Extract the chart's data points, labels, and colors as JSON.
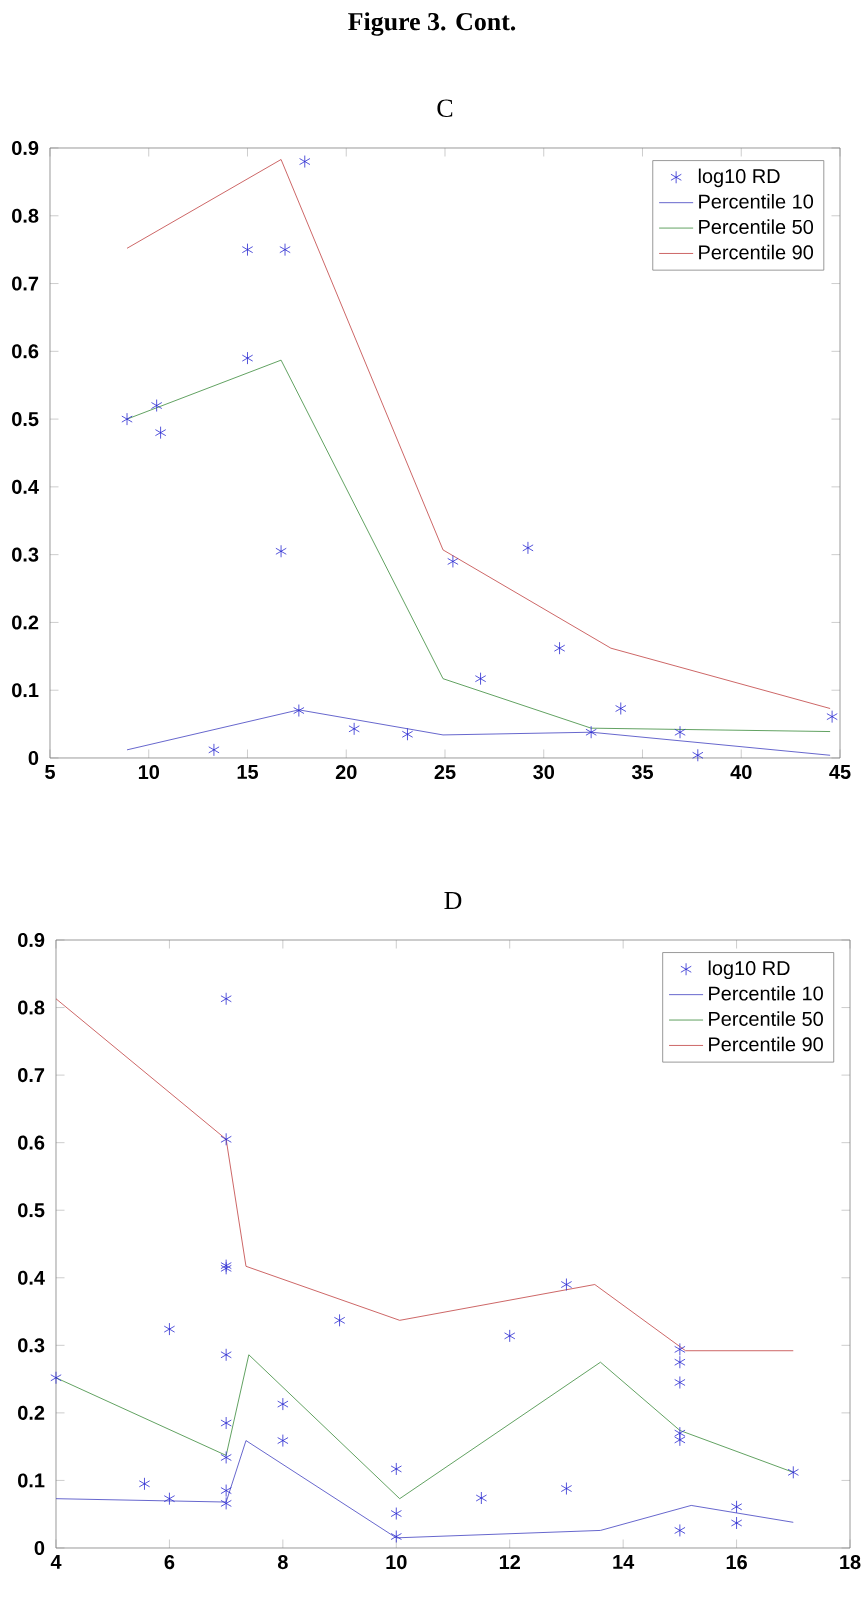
{
  "chart_data": [
    {
      "type": "line",
      "title": "C",
      "annotations": [
        "Figure 3. Cont."
      ],
      "xlim": [
        5,
        45
      ],
      "ylim": [
        0,
        0.9
      ],
      "xticks": [
        5,
        10,
        15,
        20,
        25,
        30,
        35,
        40,
        45
      ],
      "yticks": [
        0,
        0.1,
        0.2,
        0.3,
        0.4,
        0.5,
        0.6,
        0.7,
        0.8,
        0.9
      ],
      "legend": "top right",
      "grid": false,
      "series": [
        {
          "name": "log10 RD",
          "type": "scatter",
          "marker": "cross",
          "color": "#2a2ad0",
          "x": [
            8.9,
            10.4,
            10.6,
            15.0,
            15.0,
            16.9,
            17.9,
            16.7,
            13.3,
            17.6,
            20.4,
            23.1,
            25.4,
            26.8,
            29.2,
            30.8,
            32.4,
            33.9,
            36.9,
            37.8,
            44.6
          ],
          "values": [
            0.5,
            0.52,
            0.48,
            0.59,
            0.75,
            0.75,
            0.88,
            0.305,
            0.012,
            0.07,
            0.043,
            0.035,
            0.29,
            0.117,
            0.31,
            0.162,
            0.038,
            0.073,
            0.038,
            0.004,
            0.061
          ]
        },
        {
          "name": "Percentile 10",
          "type": "line",
          "color": "#4040c0",
          "x": [
            8.9,
            17.6,
            24.9,
            32.4,
            44.5
          ],
          "values": [
            0.012,
            0.071,
            0.034,
            0.038,
            0.004
          ]
        },
        {
          "name": "Percentile 50",
          "type": "line",
          "color": "#3a8a3a",
          "x": [
            8.9,
            16.7,
            24.9,
            32.4,
            44.5
          ],
          "values": [
            0.5,
            0.587,
            0.117,
            0.044,
            0.039
          ]
        },
        {
          "name": "Percentile 90",
          "type": "line",
          "color": "#c04040",
          "x": [
            8.9,
            16.7,
            24.9,
            33.4,
            44.5
          ],
          "values": [
            0.752,
            0.883,
            0.307,
            0.162,
            0.073
          ]
        }
      ]
    },
    {
      "type": "line",
      "title": "D",
      "xlim": [
        4,
        18
      ],
      "ylim": [
        0,
        0.9
      ],
      "xticks": [
        4,
        6,
        8,
        10,
        12,
        14,
        16,
        18
      ],
      "yticks": [
        0,
        0.1,
        0.2,
        0.3,
        0.4,
        0.5,
        0.6,
        0.7,
        0.8,
        0.9
      ],
      "legend": "top right",
      "grid": false,
      "series": [
        {
          "name": "log10 RD",
          "type": "scatter",
          "marker": "cross",
          "color": "#2a2ad0",
          "x": [
            4.0,
            5.56,
            6.0,
            6.0,
            7,
            7,
            7,
            7,
            7,
            7,
            7,
            7,
            7,
            8,
            8,
            9,
            10,
            10,
            10,
            11.5,
            12,
            13,
            13,
            15,
            15,
            15,
            15,
            15,
            15,
            16,
            16,
            17
          ],
          "values": [
            0.252,
            0.095,
            0.073,
            0.324,
            0.414,
            0.418,
            0.286,
            0.185,
            0.134,
            0.085,
            0.066,
            0.813,
            0.605,
            0.213,
            0.159,
            0.337,
            0.117,
            0.051,
            0.017,
            0.074,
            0.314,
            0.088,
            0.39,
            0.294,
            0.275,
            0.245,
            0.17,
            0.16,
            0.026,
            0.061,
            0.037,
            0.112
          ]
        },
        {
          "name": "Percentile 10",
          "type": "line",
          "color": "#4040c0",
          "x": [
            4,
            7,
            7.35,
            10,
            13.6,
            15.2,
            17
          ],
          "values": [
            0.073,
            0.068,
            0.159,
            0.015,
            0.026,
            0.063,
            0.038
          ]
        },
        {
          "name": "Percentile 50",
          "type": "line",
          "color": "#3a8a3a",
          "x": [
            4,
            7,
            7.4,
            10.06,
            13.6,
            15,
            17
          ],
          "values": [
            0.252,
            0.137,
            0.286,
            0.073,
            0.275,
            0.174,
            0.112
          ]
        },
        {
          "name": "Percentile 90",
          "type": "line",
          "color": "#c04040",
          "x": [
            4,
            7,
            7.35,
            10.06,
            13.5,
            15.1,
            17
          ],
          "values": [
            0.813,
            0.605,
            0.417,
            0.337,
            0.39,
            0.292,
            0.292
          ]
        }
      ]
    }
  ]
}
